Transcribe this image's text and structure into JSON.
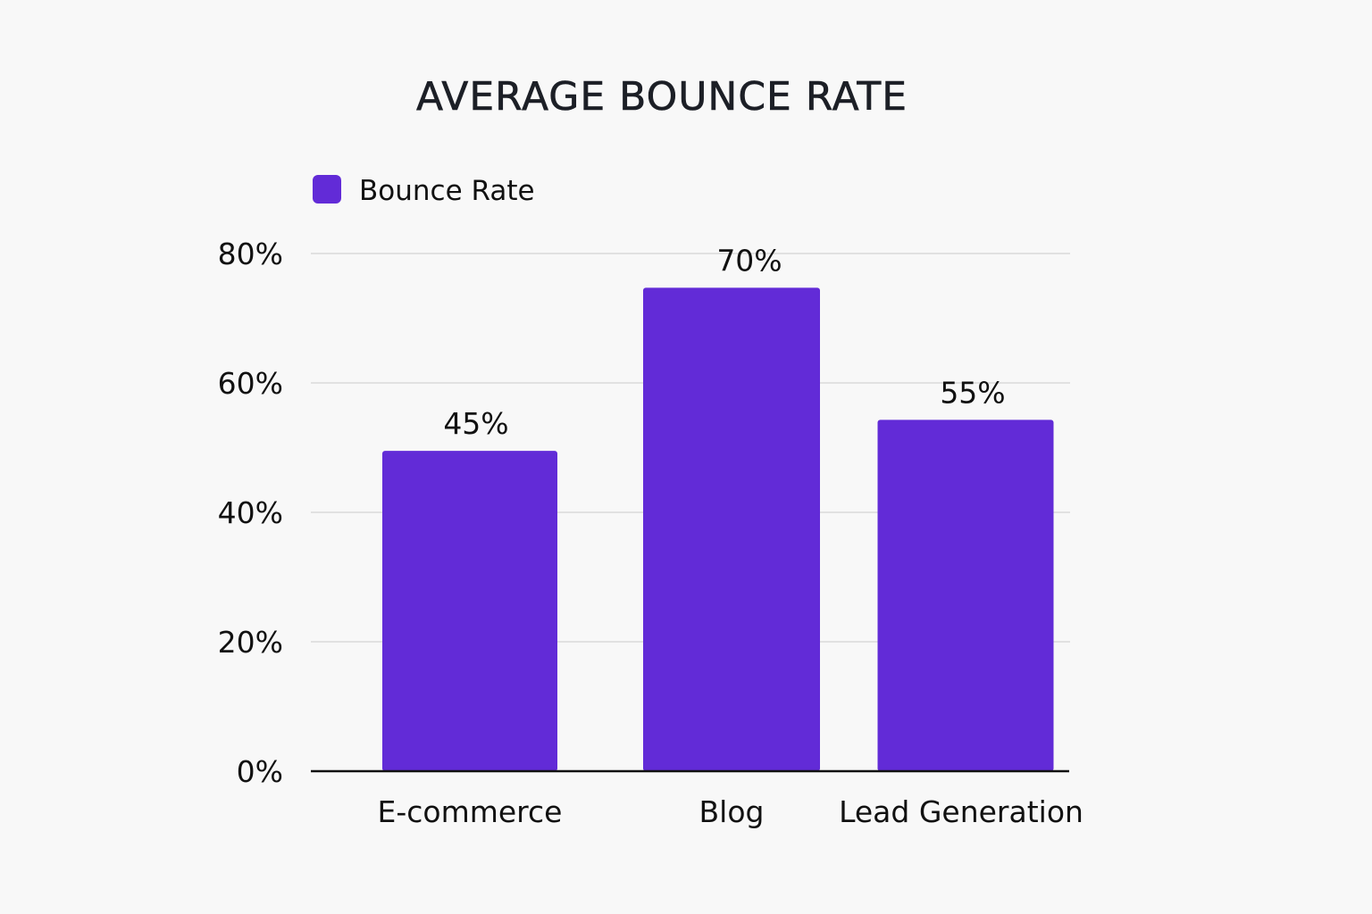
{
  "chart_data": {
    "type": "bar",
    "title": "AVERAGE BOUNCE RATE",
    "categories": [
      "E-commerce",
      "Blog",
      "Lead Generation"
    ],
    "series": [
      {
        "name": "Bounce Rate",
        "values": [
          45,
          70,
          55
        ],
        "data_labels": [
          "45%",
          "70%",
          "55%"
        ],
        "color": "#622bd7"
      }
    ],
    "ylim": [
      0,
      80
    ],
    "yticks": [
      0,
      20,
      40,
      60,
      80
    ],
    "ytick_labels": [
      "0%",
      "20%",
      "40%",
      "60%",
      "80%"
    ],
    "xlabel": "",
    "ylabel": "",
    "grid": true,
    "legend_position": "top-left"
  },
  "colors": {
    "background": "#f8f8f8",
    "bar": "#622bd7",
    "grid": "#d9d9d9",
    "axis": "#111111",
    "text": "#111111"
  }
}
